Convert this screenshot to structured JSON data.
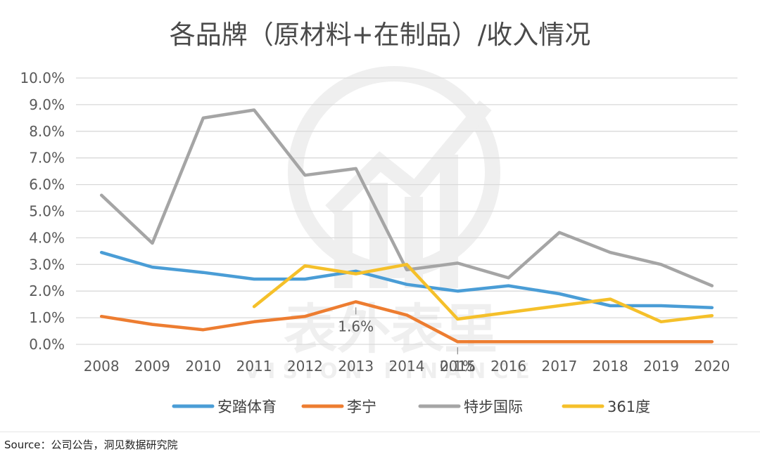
{
  "chart_data": {
    "type": "line",
    "title": "各品牌（原材料+在制品）/收入情况",
    "categories": [
      "2008",
      "2009",
      "2010",
      "2011",
      "2012",
      "2013",
      "2014",
      "2015",
      "2016",
      "2017",
      "2018",
      "2019",
      "2020"
    ],
    "y_ticks": [
      "0.0%",
      "1.0%",
      "2.0%",
      "3.0%",
      "4.0%",
      "5.0%",
      "6.0%",
      "7.0%",
      "8.0%",
      "9.0%",
      "10.0%"
    ],
    "ylim": [
      0,
      10
    ],
    "y_unit": "%",
    "grid": true,
    "legend_position": "bottom",
    "series": [
      {
        "name": "安踏体育",
        "color": "#4A9DD6",
        "values": [
          3.45,
          2.9,
          2.7,
          2.45,
          2.45,
          2.75,
          2.25,
          2.0,
          2.2,
          1.9,
          1.45,
          1.45,
          1.38
        ]
      },
      {
        "name": "李宁",
        "color": "#ED7D31",
        "values": [
          1.05,
          0.75,
          0.55,
          0.85,
          1.05,
          1.6,
          1.1,
          0.1,
          0.1,
          0.1,
          0.1,
          0.1,
          0.1
        ]
      },
      {
        "name": "特步国际",
        "color": "#A5A5A5",
        "values": [
          5.6,
          3.8,
          8.5,
          8.8,
          6.35,
          6.6,
          2.8,
          3.05,
          2.5,
          4.2,
          3.45,
          3.0,
          2.2
        ]
      },
      {
        "name": "361度",
        "color": "#F5C02A",
        "values": [
          null,
          null,
          null,
          1.42,
          2.95,
          2.65,
          3.0,
          0.95,
          1.2,
          1.45,
          1.7,
          0.85,
          1.08
        ]
      }
    ],
    "annotations": [
      {
        "text": "1.6%",
        "category": "2013",
        "value": 1.6
      },
      {
        "text": "0.1%",
        "category": "2015",
        "value": 0.1
      }
    ]
  },
  "watermark": {
    "text": "VISION FINANCE",
    "cn": "表外表里"
  },
  "source": "Source：公司公告，洞见数据研究院"
}
